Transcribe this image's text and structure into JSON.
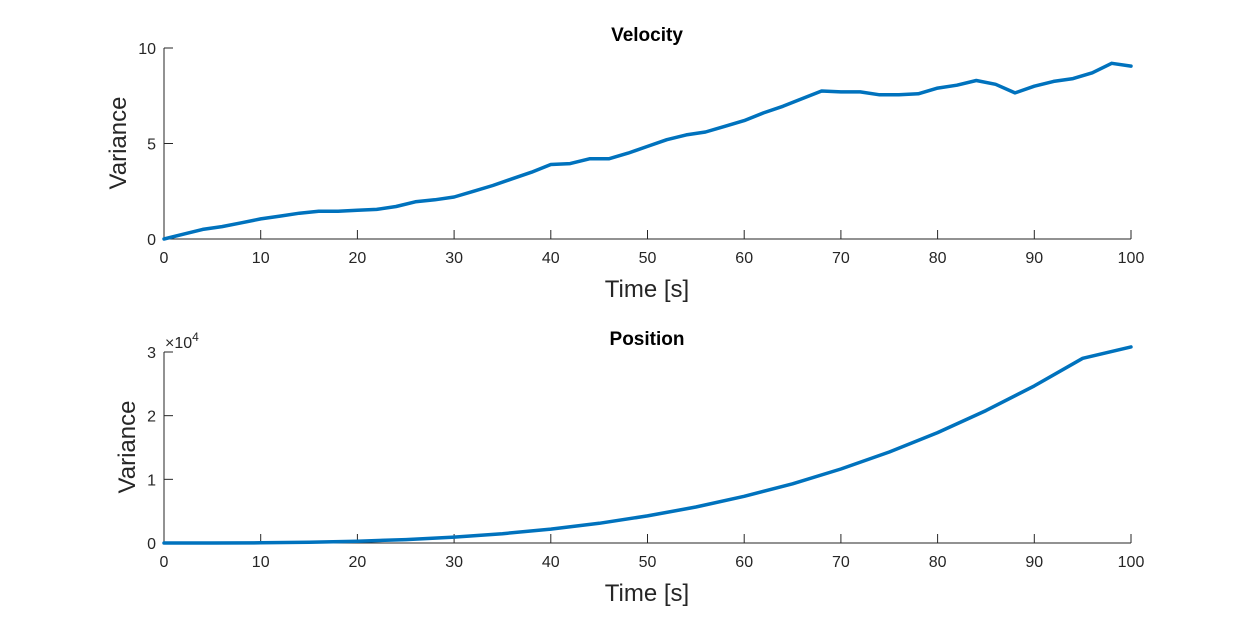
{
  "colors": {
    "line": "#0072BD",
    "axis": "#262626",
    "background": "#ffffff"
  },
  "chart_data": [
    {
      "type": "line",
      "title": "Velocity",
      "xlabel": "Time [s]",
      "ylabel": "Variance",
      "xlim": [
        0,
        100
      ],
      "ylim": [
        0,
        10
      ],
      "xticks": [
        0,
        10,
        20,
        30,
        40,
        50,
        60,
        70,
        80,
        90,
        100
      ],
      "yticks": [
        0,
        5,
        10
      ],
      "grid": false,
      "series": [
        {
          "x": [
            0,
            2,
            4,
            6,
            8,
            10,
            12,
            14,
            16,
            18,
            20,
            22,
            24,
            26,
            28,
            30,
            32,
            34,
            36,
            38,
            40,
            42,
            44,
            46,
            48,
            50,
            52,
            54,
            56,
            58,
            60,
            62,
            64,
            66,
            68,
            70,
            72,
            74,
            76,
            78,
            80,
            82,
            84,
            86,
            88,
            90,
            92,
            94,
            96,
            98,
            100
          ],
          "y": [
            0.0,
            0.25,
            0.5,
            0.65,
            0.85,
            1.05,
            1.2,
            1.35,
            1.45,
            1.45,
            1.5,
            1.55,
            1.7,
            1.95,
            2.05,
            2.2,
            2.5,
            2.8,
            3.15,
            3.5,
            3.9,
            3.95,
            4.2,
            4.2,
            4.5,
            4.85,
            5.2,
            5.45,
            5.6,
            5.9,
            6.2,
            6.6,
            6.95,
            7.35,
            7.75,
            7.7,
            7.7,
            7.55,
            7.55,
            7.6,
            7.9,
            8.05,
            8.3,
            8.1,
            7.65,
            8.0,
            8.25,
            8.4,
            8.7,
            9.2,
            9.05
          ]
        }
      ]
    },
    {
      "type": "line",
      "title": "Position",
      "xlabel": "Time [s]",
      "ylabel": "Variance",
      "xlim": [
        0,
        100
      ],
      "ylim": [
        0,
        30000
      ],
      "xticks": [
        0,
        10,
        20,
        30,
        40,
        50,
        60,
        70,
        80,
        90,
        100
      ],
      "yticks": [
        0,
        10000,
        20000,
        30000
      ],
      "ytick_labels": [
        "0",
        "1",
        "2",
        "3"
      ],
      "y_exponent_base": "×10",
      "y_exponent_power": "4",
      "grid": false,
      "series": [
        {
          "x": [
            0,
            5,
            10,
            15,
            20,
            25,
            30,
            35,
            40,
            45,
            50,
            55,
            60,
            65,
            70,
            75,
            80,
            85,
            90,
            95,
            100
          ],
          "y": [
            0,
            5,
            35,
            120,
            280,
            540,
            920,
            1460,
            2180,
            3100,
            4250,
            5650,
            7330,
            9300,
            11620,
            14290,
            17340,
            20800,
            24680,
            29010,
            30800
          ]
        }
      ]
    }
  ]
}
